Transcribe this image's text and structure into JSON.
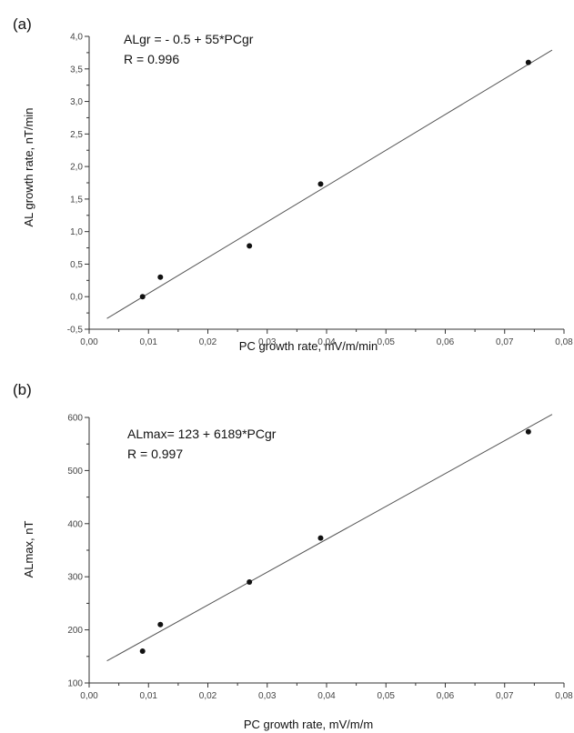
{
  "chart_data": [
    {
      "type": "scatter",
      "panel_label": "(a)",
      "xlabel": "PC growth rate, mV/m/min",
      "ylabel": "AL growth rate, nT/min",
      "xlim": [
        0.0,
        0.08
      ],
      "ylim": [
        -0.5,
        4.0
      ],
      "x_ticks": [
        0.0,
        0.01,
        0.02,
        0.03,
        0.04,
        0.05,
        0.06,
        0.07,
        0.08
      ],
      "x_tick_labels": [
        "0,00",
        "0,01",
        "0,02",
        "0,03",
        "0,04",
        "0,05",
        "0,06",
        "0,07",
        "0,08"
      ],
      "y_ticks": [
        -0.5,
        0.0,
        0.5,
        1.0,
        1.5,
        2.0,
        2.5,
        3.0,
        3.5,
        4.0
      ],
      "y_tick_labels": [
        "-0,5",
        "0,0",
        "0,5",
        "1,0",
        "1,5",
        "2,0",
        "2,5",
        "3,0",
        "3,5",
        "4,0"
      ],
      "grid": false,
      "annotations": [
        "ALgr = - 0.5 + 55*PCgr",
        "R = 0.996"
      ],
      "series": [
        {
          "x": [
            0.009,
            0.012,
            0.027,
            0.039,
            0.074
          ],
          "y": [
            0.0,
            0.3,
            0.78,
            1.73,
            3.6
          ]
        }
      ],
      "fit": {
        "intercept": -0.5,
        "slope": 55,
        "x_range": [
          0.003,
          0.078
        ]
      },
      "colors": {
        "line": "#555555",
        "marker": "#111111"
      }
    },
    {
      "type": "scatter",
      "panel_label": "(b)",
      "xlabel": "PC growth rate, mV/m/m",
      "ylabel": "ALmax, nT",
      "xlim": [
        0.0,
        0.08
      ],
      "ylim": [
        100,
        600
      ],
      "x_ticks": [
        0.0,
        0.01,
        0.02,
        0.03,
        0.04,
        0.05,
        0.06,
        0.07,
        0.08
      ],
      "x_tick_labels": [
        "0,00",
        "0,01",
        "0,02",
        "0,03",
        "0,04",
        "0,05",
        "0,06",
        "0,07",
        "0,08"
      ],
      "y_ticks": [
        100,
        200,
        300,
        400,
        500,
        600
      ],
      "y_tick_labels": [
        "100",
        "200",
        "300",
        "400",
        "500",
        "600"
      ],
      "grid": false,
      "annotations": [
        "ALmax= 123 + 6189*PCgr",
        "R = 0.997"
      ],
      "series": [
        {
          "x": [
            0.009,
            0.012,
            0.027,
            0.039,
            0.074
          ],
          "y": [
            160,
            210,
            290,
            373,
            573
          ]
        }
      ],
      "fit": {
        "intercept": 123,
        "slope": 6189,
        "x_range": [
          0.003,
          0.078
        ]
      },
      "colors": {
        "line": "#555555",
        "marker": "#111111"
      }
    }
  ]
}
